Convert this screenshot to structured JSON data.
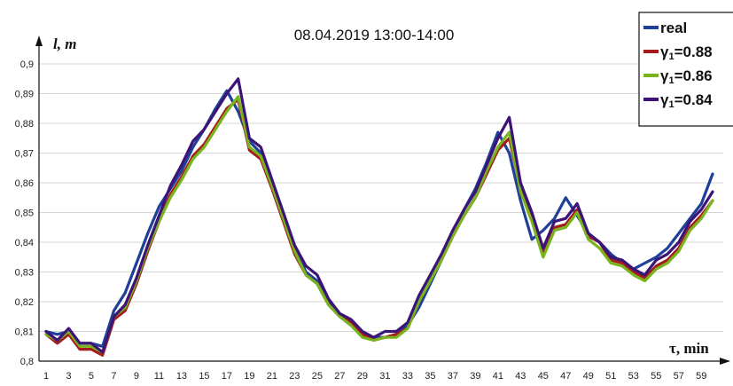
{
  "chart_data": {
    "type": "line",
    "title": "08.04.2019 13:00-14:00",
    "ylabel": "l, m",
    "xlabel": "τ, min",
    "ylim": [
      0.8,
      0.9
    ],
    "yticks": [
      "0,8",
      "0,81",
      "0,82",
      "0,83",
      "0,84",
      "0,85",
      "0,86",
      "0,87",
      "0,88",
      "0,89",
      "0,9"
    ],
    "yticks_values": [
      0.8,
      0.81,
      0.82,
      0.83,
      0.84,
      0.85,
      0.86,
      0.87,
      0.88,
      0.89,
      0.9
    ],
    "xlim": [
      1,
      60
    ],
    "xticks": [
      "1",
      "3",
      "5",
      "7",
      "9",
      "11",
      "13",
      "15",
      "17",
      "19",
      "21",
      "23",
      "25",
      "27",
      "29",
      "31",
      "33",
      "35",
      "37",
      "39",
      "41",
      "43",
      "45",
      "47",
      "49",
      "51",
      "53",
      "55",
      "57",
      "59"
    ],
    "x": [
      1,
      2,
      3,
      4,
      5,
      6,
      7,
      8,
      9,
      10,
      11,
      12,
      13,
      14,
      15,
      16,
      17,
      18,
      19,
      20,
      21,
      22,
      23,
      24,
      25,
      26,
      27,
      28,
      29,
      30,
      31,
      32,
      33,
      34,
      35,
      36,
      37,
      38,
      39,
      40,
      41,
      42,
      43,
      44,
      45,
      46,
      47,
      48,
      49,
      50,
      51,
      52,
      53,
      54,
      55,
      56,
      57,
      58,
      59,
      60
    ],
    "grid": true,
    "legend_position": "top-right",
    "series": [
      {
        "name": "real",
        "label_main": "real",
        "label_sub": "",
        "label_value": "",
        "color": "#1f3f99",
        "values": [
          0.81,
          0.809,
          0.81,
          0.806,
          0.806,
          0.805,
          0.817,
          0.823,
          0.833,
          0.843,
          0.852,
          0.858,
          0.864,
          0.872,
          0.878,
          0.885,
          0.891,
          0.884,
          0.874,
          0.87,
          0.86,
          0.849,
          0.838,
          0.83,
          0.827,
          0.82,
          0.815,
          0.812,
          0.809,
          0.808,
          0.808,
          0.809,
          0.812,
          0.818,
          0.826,
          0.834,
          0.843,
          0.851,
          0.858,
          0.867,
          0.877,
          0.87,
          0.854,
          0.841,
          0.844,
          0.848,
          0.855,
          0.849,
          0.843,
          0.84,
          0.836,
          0.833,
          0.831,
          0.833,
          0.835,
          0.838,
          0.843,
          0.848,
          0.853,
          0.863
        ]
      },
      {
        "name": "γ1=0.88",
        "label_main": "γ",
        "label_sub": "1",
        "label_value": "=0.88",
        "color": "#a41c1c",
        "values": [
          0.809,
          0.806,
          0.809,
          0.804,
          0.804,
          0.802,
          0.814,
          0.817,
          0.826,
          0.837,
          0.847,
          0.856,
          0.862,
          0.869,
          0.873,
          0.879,
          0.885,
          0.888,
          0.871,
          0.868,
          0.858,
          0.847,
          0.836,
          0.829,
          0.826,
          0.819,
          0.815,
          0.813,
          0.809,
          0.807,
          0.808,
          0.809,
          0.811,
          0.82,
          0.827,
          0.834,
          0.842,
          0.849,
          0.855,
          0.863,
          0.871,
          0.875,
          0.858,
          0.848,
          0.836,
          0.845,
          0.846,
          0.851,
          0.842,
          0.84,
          0.834,
          0.833,
          0.83,
          0.828,
          0.832,
          0.834,
          0.838,
          0.845,
          0.849,
          0.854
        ]
      },
      {
        "name": "γ1=0.86",
        "label_main": "γ",
        "label_sub": "1",
        "label_value": "=0.86",
        "color": "#78b41e",
        "values": [
          0.809,
          0.807,
          0.81,
          0.805,
          0.805,
          0.803,
          0.815,
          0.818,
          0.827,
          0.838,
          0.847,
          0.855,
          0.861,
          0.868,
          0.872,
          0.878,
          0.884,
          0.889,
          0.872,
          0.869,
          0.859,
          0.848,
          0.837,
          0.829,
          0.826,
          0.819,
          0.815,
          0.812,
          0.808,
          0.807,
          0.808,
          0.808,
          0.811,
          0.82,
          0.827,
          0.834,
          0.842,
          0.849,
          0.855,
          0.864,
          0.872,
          0.877,
          0.857,
          0.847,
          0.835,
          0.844,
          0.845,
          0.85,
          0.841,
          0.838,
          0.833,
          0.832,
          0.829,
          0.827,
          0.831,
          0.833,
          0.837,
          0.844,
          0.848,
          0.854
        ]
      },
      {
        "name": "γ1=0.84",
        "label_main": "γ",
        "label_sub": "1",
        "label_value": "=0.84",
        "color": "#3c1478",
        "values": [
          0.81,
          0.807,
          0.811,
          0.806,
          0.806,
          0.803,
          0.815,
          0.819,
          0.828,
          0.839,
          0.849,
          0.859,
          0.866,
          0.874,
          0.878,
          0.884,
          0.89,
          0.895,
          0.875,
          0.872,
          0.861,
          0.85,
          0.839,
          0.832,
          0.829,
          0.821,
          0.816,
          0.814,
          0.81,
          0.808,
          0.81,
          0.81,
          0.813,
          0.822,
          0.829,
          0.836,
          0.844,
          0.851,
          0.857,
          0.866,
          0.875,
          0.882,
          0.86,
          0.85,
          0.838,
          0.847,
          0.848,
          0.853,
          0.843,
          0.84,
          0.835,
          0.834,
          0.831,
          0.829,
          0.834,
          0.836,
          0.84,
          0.847,
          0.851,
          0.857
        ]
      }
    ]
  }
}
